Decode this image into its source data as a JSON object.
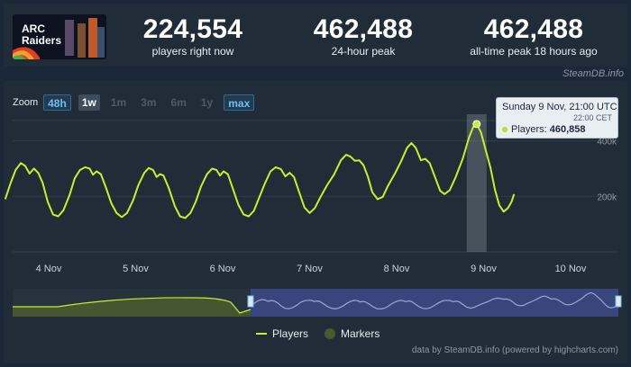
{
  "game": {
    "name_line1": "ARC",
    "name_line2": "Raiders"
  },
  "stats": [
    {
      "value": "224,554",
      "label": "players right now"
    },
    {
      "value": "462,488",
      "label": "24-hour peak"
    },
    {
      "value": "462,488",
      "label": "all-time peak 18 hours ago"
    }
  ],
  "credit_top": "SteamDB.info",
  "zoom": {
    "label": "Zoom",
    "buttons": [
      "48h",
      "1w",
      "1m",
      "3m",
      "6m",
      "1y",
      "max"
    ],
    "selected": "1w"
  },
  "tooltip": {
    "date": "Sunday 9 Nov, 21:00 UTC",
    "cet": "22:00 CET",
    "series": "Players:",
    "value": "460,858"
  },
  "legend": {
    "players": "Players",
    "markers": "Markers"
  },
  "credit_bottom": "data by SteamDB.info (powered by highcharts.com)",
  "colors": {
    "line": "#c8f026",
    "grid": "#2f3d4a",
    "navigator_fill": "#3d4a8a",
    "markers": "#4a5a30"
  },
  "chart_data": {
    "type": "line",
    "series": [
      {
        "name": "Players"
      }
    ],
    "x_ticks": [
      "4 Nov",
      "5 Nov",
      "6 Nov",
      "7 Nov",
      "8 Nov",
      "9 Nov",
      "10 Nov"
    ],
    "y_ticks": [
      "200k",
      "400k"
    ],
    "ylim": [
      0,
      470000
    ],
    "x_day_start": 3.5,
    "points": [
      [
        3.5,
        190000
      ],
      [
        3.56,
        245000
      ],
      [
        3.62,
        295000
      ],
      [
        3.68,
        320000
      ],
      [
        3.73,
        310000
      ],
      [
        3.78,
        282000
      ],
      [
        3.83,
        300000
      ],
      [
        3.88,
        285000
      ],
      [
        3.93,
        250000
      ],
      [
        3.99,
        180000
      ],
      [
        4.05,
        135000
      ],
      [
        4.11,
        128000
      ],
      [
        4.17,
        150000
      ],
      [
        4.24,
        205000
      ],
      [
        4.3,
        265000
      ],
      [
        4.36,
        295000
      ],
      [
        4.42,
        305000
      ],
      [
        4.47,
        300000
      ],
      [
        4.51,
        278000
      ],
      [
        4.55,
        290000
      ],
      [
        4.6,
        280000
      ],
      [
        4.66,
        230000
      ],
      [
        4.72,
        175000
      ],
      [
        4.78,
        140000
      ],
      [
        4.84,
        125000
      ],
      [
        4.9,
        140000
      ],
      [
        4.97,
        185000
      ],
      [
        5.03,
        240000
      ],
      [
        5.1,
        285000
      ],
      [
        5.15,
        302000
      ],
      [
        5.2,
        295000
      ],
      [
        5.24,
        270000
      ],
      [
        5.28,
        280000
      ],
      [
        5.32,
        275000
      ],
      [
        5.38,
        230000
      ],
      [
        5.45,
        165000
      ],
      [
        5.51,
        128000
      ],
      [
        5.57,
        122000
      ],
      [
        5.63,
        140000
      ],
      [
        5.69,
        180000
      ],
      [
        5.75,
        235000
      ],
      [
        5.82,
        280000
      ],
      [
        5.88,
        300000
      ],
      [
        5.93,
        295000
      ],
      [
        5.97,
        275000
      ],
      [
        6.01,
        290000
      ],
      [
        6.06,
        280000
      ],
      [
        6.12,
        225000
      ],
      [
        6.18,
        170000
      ],
      [
        6.24,
        135000
      ],
      [
        6.3,
        128000
      ],
      [
        6.36,
        148000
      ],
      [
        6.42,
        195000
      ],
      [
        6.49,
        250000
      ],
      [
        6.55,
        290000
      ],
      [
        6.61,
        305000
      ],
      [
        6.67,
        298000
      ],
      [
        6.72,
        272000
      ],
      [
        6.77,
        285000
      ],
      [
        6.82,
        270000
      ],
      [
        6.88,
        215000
      ],
      [
        6.94,
        160000
      ],
      [
        7.0,
        140000
      ],
      [
        7.06,
        158000
      ],
      [
        7.12,
        195000
      ],
      [
        7.2,
        240000
      ],
      [
        7.28,
        278000
      ],
      [
        7.36,
        330000
      ],
      [
        7.42,
        350000
      ],
      [
        7.47,
        343000
      ],
      [
        7.52,
        328000
      ],
      [
        7.57,
        330000
      ],
      [
        7.62,
        312000
      ],
      [
        7.67,
        270000
      ],
      [
        7.72,
        215000
      ],
      [
        7.78,
        190000
      ],
      [
        7.84,
        198000
      ],
      [
        7.9,
        238000
      ],
      [
        7.98,
        282000
      ],
      [
        8.05,
        325000
      ],
      [
        8.12,
        375000
      ],
      [
        8.17,
        392000
      ],
      [
        8.22,
        375000
      ],
      [
        8.28,
        330000
      ],
      [
        8.33,
        335000
      ],
      [
        8.38,
        320000
      ],
      [
        8.44,
        270000
      ],
      [
        8.5,
        220000
      ],
      [
        8.55,
        208000
      ],
      [
        8.61,
        222000
      ],
      [
        8.68,
        270000
      ],
      [
        8.76,
        335000
      ],
      [
        8.83,
        410000
      ],
      [
        8.88,
        450000
      ],
      [
        8.92,
        461000
      ],
      [
        8.97,
        430000
      ],
      [
        9.02,
        372000
      ],
      [
        9.08,
        302000
      ],
      [
        9.13,
        225000
      ],
      [
        9.18,
        168000
      ],
      [
        9.23,
        145000
      ],
      [
        9.28,
        158000
      ],
      [
        9.32,
        180000
      ],
      [
        9.35,
        208000
      ]
    ],
    "highlight": {
      "x": 8.92,
      "y": 460858
    }
  }
}
